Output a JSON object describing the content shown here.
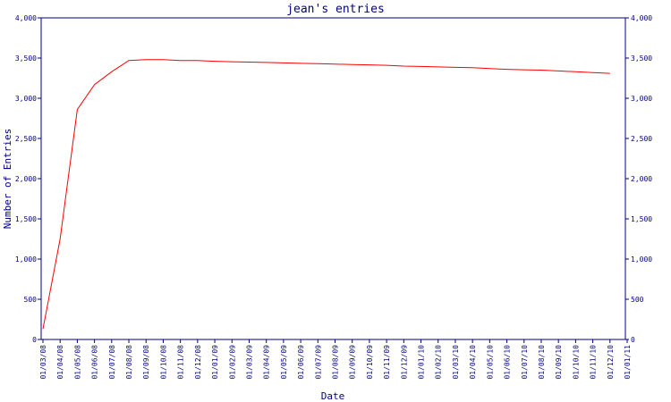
{
  "chart_data": {
    "type": "line",
    "title": "jean's entries",
    "xlabel": "Date",
    "ylabel": "Number of Entries",
    "ylim": [
      0,
      4000
    ],
    "yticks": [
      0,
      500,
      1000,
      1500,
      2000,
      2500,
      3000,
      3500,
      4000
    ],
    "ytick_labels": [
      "0",
      "500",
      "1,000",
      "1,500",
      "2,000",
      "2,500",
      "3,000",
      "3,500",
      "4,000"
    ],
    "x_ticks": [
      "01/03/08",
      "01/04/08",
      "01/05/08",
      "01/06/08",
      "01/07/08",
      "01/08/08",
      "01/09/08",
      "01/10/08",
      "01/11/08",
      "01/12/08",
      "01/01/09",
      "01/02/09",
      "01/03/09",
      "01/04/09",
      "01/05/09",
      "01/06/09",
      "01/07/09",
      "01/08/09",
      "01/09/09",
      "01/10/09",
      "01/11/09",
      "01/12/09",
      "01/01/10",
      "01/02/10",
      "01/03/10",
      "01/04/10",
      "01/05/10",
      "01/06/10",
      "01/07/10",
      "01/08/10",
      "01/09/10",
      "01/10/10",
      "01/11/10",
      "01/12/10",
      "01/01/11"
    ],
    "grid": false,
    "legend": "none",
    "colors": {
      "line": "#ff0000",
      "axis": "#000080",
      "text": "#000080"
    },
    "series": [
      {
        "x": [
          "01/03/08",
          "01/04/08",
          "01/05/08",
          "01/06/08",
          "01/07/08",
          "01/08/08",
          "01/09/08",
          "01/10/08",
          "01/11/08",
          "01/12/08",
          "01/01/09",
          "01/02/09",
          "01/03/09",
          "01/04/09",
          "01/05/09",
          "01/06/09",
          "01/07/09",
          "01/08/09",
          "01/09/09",
          "01/10/09",
          "01/11/09",
          "01/12/09",
          "01/01/10",
          "01/02/10",
          "01/03/10",
          "01/04/10",
          "01/05/10",
          "01/06/10",
          "01/07/10",
          "01/08/10",
          "01/09/10",
          "01/10/10",
          "01/11/10",
          "01/12/10"
        ],
        "values": [
          130,
          1250,
          2860,
          3170,
          3330,
          3470,
          3480,
          3480,
          3470,
          3470,
          3460,
          3455,
          3450,
          3445,
          3440,
          3435,
          3430,
          3425,
          3420,
          3415,
          3410,
          3400,
          3395,
          3390,
          3385,
          3380,
          3370,
          3360,
          3355,
          3350,
          3340,
          3330,
          3320,
          3310
        ]
      }
    ]
  }
}
